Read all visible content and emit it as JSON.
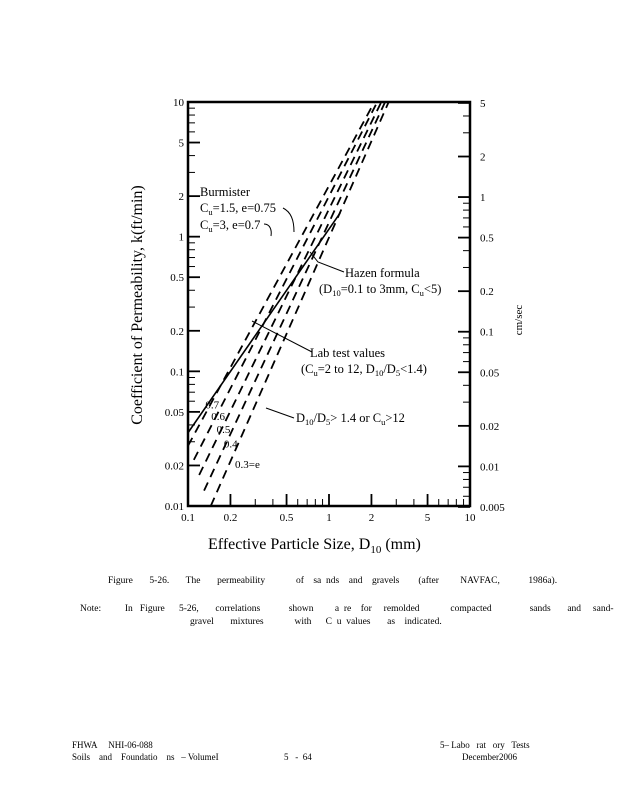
{
  "chart_data": {
    "type": "line",
    "xlabel_main": "Effective Particle Size, D",
    "xlabel_sub": "10",
    "xlabel_unit": " (mm)",
    "ylabel": "Coefficient of Permeability, k(ft/min)",
    "right_axis_label": "cm/sec",
    "x_scale": "log",
    "y_scale": "log",
    "xlim": [
      0.1,
      10
    ],
    "ylim": [
      0.01,
      10
    ],
    "x_ticks": [
      "0.1",
      "0.2",
      "0.5",
      "1",
      "2",
      "5",
      "10"
    ],
    "y_ticks": [
      "10",
      "5",
      "2",
      "1",
      "0.5",
      "0.2",
      "0.1",
      "0.05",
      "0.02",
      "0.01"
    ],
    "right_ticks": [
      "5",
      "2",
      "1",
      "0.5",
      "0.2",
      "0.1",
      "0.05",
      "0.02",
      "0.01",
      "0.005"
    ],
    "grid": false,
    "series": [
      {
        "style": "solid",
        "x": [
          0.1,
          1.2
        ],
        "y": [
          0.035,
          1.5
        ]
      },
      {
        "style": "dashed",
        "label": "0.7",
        "x": [
          0.1,
          2.1
        ],
        "y": [
          0.028,
          10
        ]
      },
      {
        "style": "dashed",
        "label": "0.6",
        "x": [
          0.11,
          2.2
        ],
        "y": [
          0.022,
          10
        ]
      },
      {
        "style": "dashed",
        "label": "0.5",
        "x": [
          0.12,
          2.35
        ],
        "y": [
          0.017,
          10
        ]
      },
      {
        "style": "dashed",
        "label": "0.4",
        "x": [
          0.13,
          2.5
        ],
        "y": [
          0.013,
          10
        ]
      },
      {
        "style": "dashed",
        "label": "0.3=e",
        "x": [
          0.145,
          2.65
        ],
        "y": [
          0.01,
          10
        ]
      }
    ],
    "annotations": {
      "burmister": {
        "title": "Burmister",
        "l1_pre": "C",
        "l1_sub": "u",
        "l1_post": "=1.5, e=0.75",
        "l2_pre": "C",
        "l2_sub": "u",
        "l2_post": "=3, e=0.7"
      },
      "hazen": {
        "title": "Hazen formula",
        "l1_pre": "(D",
        "l1_sub": "10",
        "l1_mid": "=0.1 to 3mm, C",
        "l1_sub2": "u",
        "l1_post": "<5)"
      },
      "lab": {
        "title": "Lab test values",
        "l1_pre": "(C",
        "l1_sub": "u",
        "l1_mid": "=2 to 12, D",
        "l1_sub2": "10",
        "l1_mid2": "/D",
        "l1_sub3": "5",
        "l1_post": "<1.4)"
      },
      "d10": {
        "pre": "D",
        "sub": "10",
        "mid": "/D",
        "sub2": "5",
        "mid2": "> 1.4 or C",
        "sub3": "u",
        "post": ">12"
      }
    }
  },
  "caption": {
    "figure": "Figure       5-26.       The       permeability             of    sa  nds    and    gravels        (after         NAVFAC,            1986a).",
    "note_line1": "Note:          In   Figure      5-26,       correlations            shown         a  re    for     remolded             compacted                sands       and     sand-",
    "note_line2": "gravel       mixtures             with      C  u  values       as    indicated."
  },
  "footer": {
    "left1": "FHWA     NHI-06-088",
    "left2": "Soils    and    Foundatio    ns   – VolumeI",
    "center": "5   -  64",
    "right1": "5– Labo   rat   ory   Tests",
    "right2": "December2006"
  }
}
